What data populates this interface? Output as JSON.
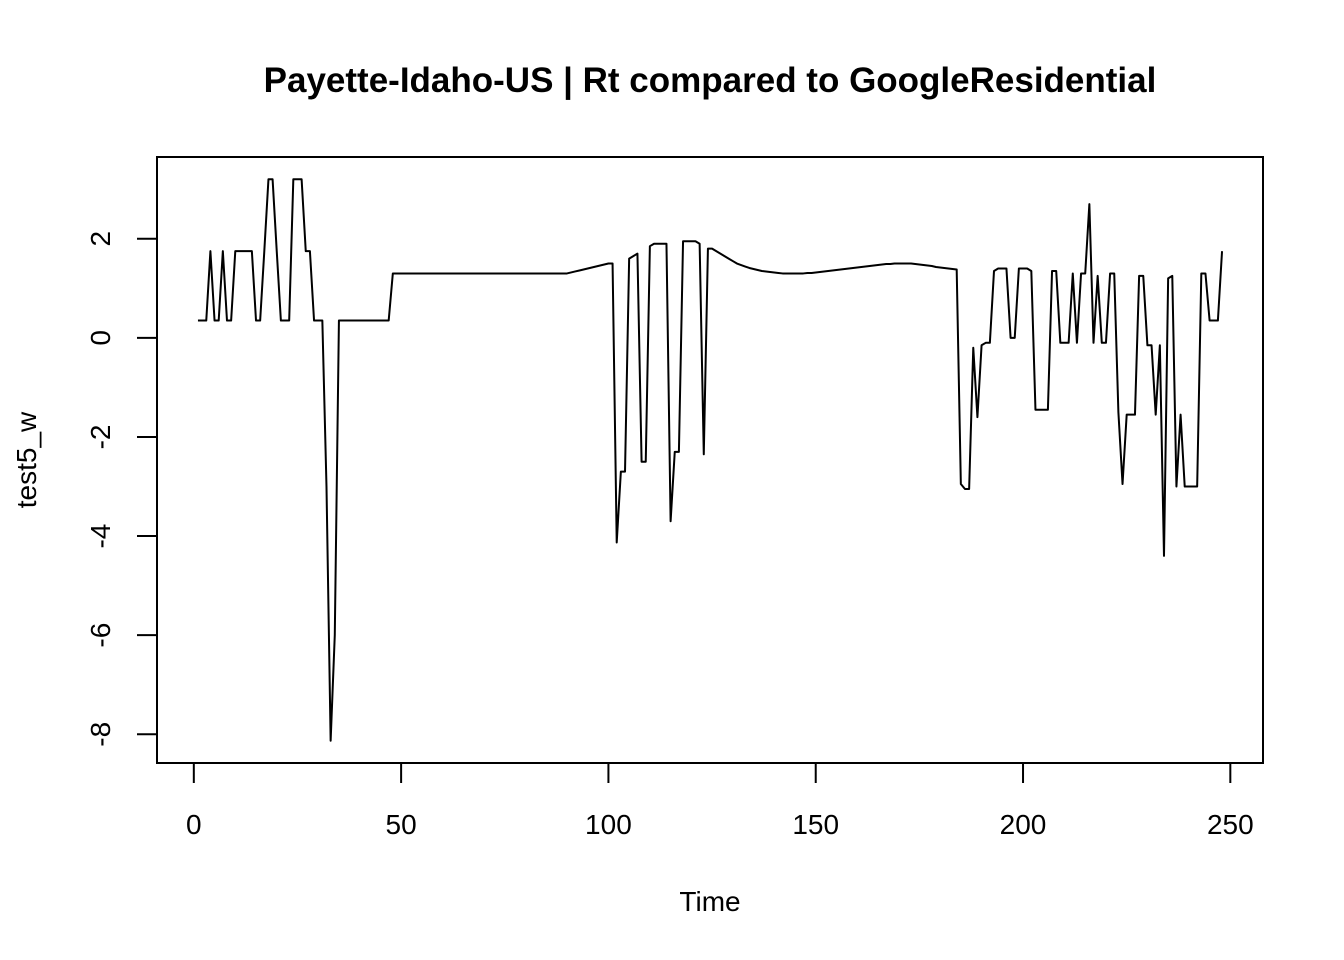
{
  "chart_data": {
    "type": "line",
    "title": "Payette-Idaho-US | Rt compared to GoogleResidential",
    "xlabel": "Time",
    "ylabel": "test5_w",
    "color": "#000000",
    "x": [
      1,
      2,
      3,
      4,
      5,
      6,
      7,
      8,
      9,
      10,
      11,
      12,
      13,
      14,
      15,
      16,
      17,
      18,
      19,
      20,
      21,
      22,
      23,
      24,
      25,
      26,
      27,
      28,
      29,
      30,
      31,
      32,
      33,
      34,
      35,
      36,
      37,
      38,
      39,
      40,
      41,
      42,
      43,
      44,
      45,
      46,
      47,
      48,
      49,
      50,
      51,
      52,
      53,
      54,
      55,
      56,
      57,
      58,
      59,
      60,
      61,
      62,
      63,
      64,
      65,
      66,
      67,
      68,
      69,
      70,
      71,
      72,
      73,
      74,
      75,
      76,
      77,
      78,
      79,
      80,
      81,
      82,
      83,
      84,
      85,
      86,
      87,
      88,
      89,
      90,
      91,
      92,
      93,
      94,
      95,
      96,
      97,
      98,
      99,
      100,
      101,
      102,
      103,
      104,
      105,
      106,
      107,
      108,
      109,
      110,
      111,
      112,
      113,
      114,
      115,
      116,
      117,
      118,
      119,
      120,
      121,
      122,
      123,
      124,
      125,
      126,
      127,
      128,
      129,
      130,
      131,
      132,
      133,
      134,
      135,
      136,
      137,
      138,
      139,
      140,
      141,
      142,
      143,
      144,
      145,
      146,
      147,
      148,
      149,
      150,
      151,
      152,
      153,
      154,
      155,
      156,
      157,
      158,
      159,
      160,
      161,
      162,
      163,
      164,
      165,
      166,
      167,
      168,
      169,
      170,
      171,
      172,
      173,
      174,
      175,
      176,
      177,
      178,
      179,
      180,
      181,
      182,
      183,
      184,
      185,
      186,
      187,
      188,
      189,
      190,
      191,
      192,
      193,
      194,
      195,
      196,
      197,
      198,
      199,
      200,
      201,
      202,
      203,
      204,
      205,
      206,
      207,
      208,
      209,
      210,
      211,
      212,
      213,
      214,
      215,
      216,
      217,
      218,
      219,
      220,
      221,
      222,
      223,
      224,
      225,
      226,
      227,
      228,
      229,
      230,
      231,
      232,
      233,
      234,
      235,
      236,
      237,
      238,
      239,
      240,
      241,
      242,
      243,
      244,
      245,
      246,
      247,
      248
    ],
    "values": [
      0.35,
      0.35,
      0.35,
      1.75,
      0.35,
      0.35,
      1.75,
      0.35,
      0.35,
      1.75,
      1.75,
      1.75,
      1.75,
      1.75,
      0.35,
      0.35,
      1.75,
      3.2,
      3.2,
      1.75,
      0.35,
      0.35,
      0.35,
      3.2,
      3.2,
      3.2,
      1.75,
      1.75,
      0.35,
      0.35,
      0.35,
      -3,
      -8.13,
      -6,
      0.35,
      0.35,
      0.35,
      0.35,
      0.35,
      0.35,
      0.35,
      0.35,
      0.35,
      0.35,
      0.35,
      0.35,
      0.35,
      1.3,
      1.3,
      1.3,
      1.3,
      1.3,
      1.3,
      1.3,
      1.3,
      1.3,
      1.3,
      1.3,
      1.3,
      1.3,
      1.3,
      1.3,
      1.3,
      1.3,
      1.3,
      1.3,
      1.3,
      1.3,
      1.3,
      1.3,
      1.3,
      1.3,
      1.3,
      1.3,
      1.3,
      1.3,
      1.3,
      1.3,
      1.3,
      1.3,
      1.3,
      1.3,
      1.3,
      1.3,
      1.3,
      1.3,
      1.3,
      1.3,
      1.3,
      1.3,
      1.32,
      1.34,
      1.36,
      1.38,
      1.4,
      1.42,
      1.44,
      1.46,
      1.48,
      1.5,
      1.5,
      -4.13,
      -2.7,
      -2.7,
      1.6,
      1.65,
      1.7,
      -2.5,
      -2.5,
      1.85,
      1.9,
      1.9,
      1.9,
      1.9,
      -3.7,
      -2.3,
      -2.3,
      1.95,
      1.95,
      1.95,
      1.95,
      1.9,
      -2.35,
      1.8,
      1.8,
      1.75,
      1.7,
      1.65,
      1.6,
      1.55,
      1.5,
      1.47,
      1.44,
      1.41,
      1.39,
      1.37,
      1.35,
      1.34,
      1.33,
      1.32,
      1.31,
      1.3,
      1.3,
      1.3,
      1.3,
      1.3,
      1.3,
      1.31,
      1.31,
      1.32,
      1.33,
      1.34,
      1.35,
      1.36,
      1.37,
      1.38,
      1.39,
      1.4,
      1.41,
      1.42,
      1.43,
      1.44,
      1.45,
      1.46,
      1.47,
      1.48,
      1.49,
      1.49,
      1.5,
      1.5,
      1.5,
      1.5,
      1.5,
      1.49,
      1.48,
      1.47,
      1.46,
      1.45,
      1.43,
      1.42,
      1.41,
      1.4,
      1.39,
      1.38,
      -2.95,
      -3.05,
      -3.05,
      -0.2,
      -1.6,
      -0.15,
      -0.1,
      -0.1,
      1.35,
      1.4,
      1.4,
      1.4,
      0,
      0,
      1.4,
      1.4,
      1.4,
      1.35,
      -1.45,
      -1.45,
      -1.45,
      -1.45,
      1.35,
      1.35,
      -0.1,
      -0.1,
      -0.1,
      1.3,
      -0.1,
      1.3,
      1.3,
      2.7,
      -0.1,
      1.25,
      -0.1,
      -0.1,
      1.3,
      1.3,
      -1.5,
      -2.95,
      -1.55,
      -1.55,
      -1.55,
      1.25,
      1.25,
      -0.15,
      -0.15,
      -1.55,
      -0.15,
      -4.4,
      1.2,
      1.25,
      -3,
      -1.55,
      -3,
      -3,
      -3,
      -3,
      1.3,
      1.3,
      0.35,
      0.35,
      0.35,
      1.75
    ],
    "xlim": [
      -8.88,
      257.88
    ],
    "ylim": [
      -8.58,
      3.65
    ],
    "xticks": [
      0,
      50,
      100,
      150,
      200,
      250
    ],
    "yticks": [
      -8,
      -6,
      -4,
      -2,
      0,
      2
    ]
  }
}
